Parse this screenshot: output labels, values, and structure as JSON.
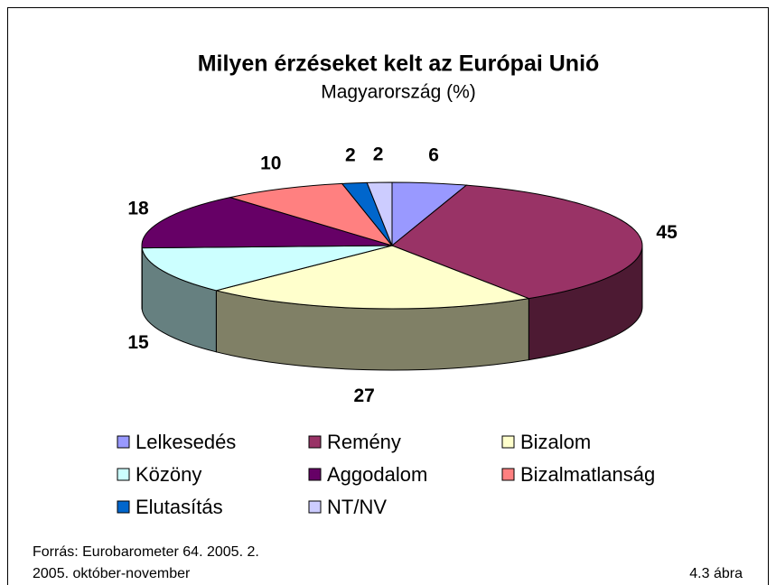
{
  "chart_data": {
    "type": "pie",
    "title": "Milyen érzéseket kelt az Európai Unió",
    "subtitle": "Magyarország (%)",
    "categories": [
      "Lelkesedés",
      "Remény",
      "Bizalom",
      "Közöny",
      "Aggodalom",
      "Bizalmatlanság",
      "Elutasítás",
      "NT/NV"
    ],
    "values": [
      6,
      45,
      27,
      15,
      18,
      10,
      2,
      2
    ],
    "colors": [
      "#9999ff",
      "#993366",
      "#ffffcc",
      "#ccffff",
      "#660066",
      "#ff8080",
      "#0066cc",
      "#ccccff"
    ],
    "source": "Forrás: Eurobarometer 64. 2005. 2.",
    "date": "2005. október-november",
    "figure_label": "4.3 ábra"
  }
}
